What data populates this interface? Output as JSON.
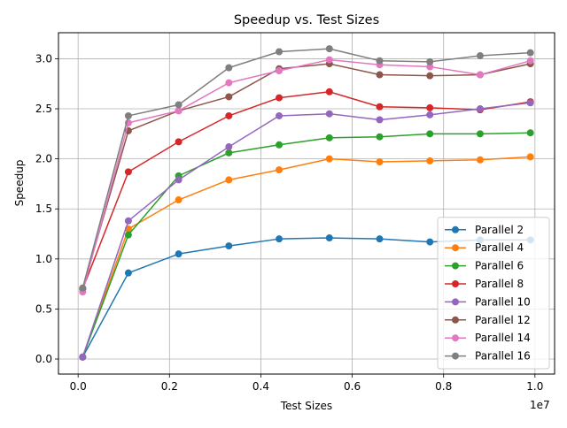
{
  "chart_data": {
    "type": "line",
    "title": "Speedup vs. Test Sizes",
    "xlabel": "Test Sizes",
    "ylabel": "Speedup",
    "x_offset_label": "1e7",
    "x": [
      100000,
      1100000,
      2200000,
      3300000,
      4400000,
      5500000,
      6600000,
      7700000,
      8800000,
      9900000
    ],
    "xlim": [
      -430000,
      10430000
    ],
    "ylim": [
      -0.15,
      3.26
    ],
    "x_ticks": [
      0,
      2000000,
      4000000,
      6000000,
      8000000,
      10000000
    ],
    "x_tick_labels": [
      "0.0",
      "0.2",
      "0.4",
      "0.6",
      "0.8",
      "1.0"
    ],
    "y_ticks": [
      0.0,
      0.5,
      1.0,
      1.5,
      2.0,
      2.5,
      3.0
    ],
    "y_tick_labels": [
      "0.0",
      "0.5",
      "1.0",
      "1.5",
      "2.0",
      "2.5",
      "3.0"
    ],
    "grid": true,
    "legend_position": "lower-right",
    "series": [
      {
        "name": "Parallel 2",
        "color": "#1f77b4",
        "values": [
          0.02,
          0.86,
          1.05,
          1.13,
          1.2,
          1.21,
          1.2,
          1.17,
          1.19,
          1.19
        ]
      },
      {
        "name": "Parallel 4",
        "color": "#ff7f0e",
        "values": [
          0.02,
          1.3,
          1.59,
          1.79,
          1.89,
          2.0,
          1.97,
          1.98,
          1.99,
          2.02
        ]
      },
      {
        "name": "Parallel 6",
        "color": "#2ca02c",
        "values": [
          0.02,
          1.24,
          1.83,
          2.06,
          2.14,
          2.21,
          2.22,
          2.25,
          2.25,
          2.26
        ]
      },
      {
        "name": "Parallel 8",
        "color": "#d62728",
        "values": [
          0.7,
          1.87,
          2.17,
          2.43,
          2.61,
          2.67,
          2.52,
          2.51,
          2.49,
          2.57
        ]
      },
      {
        "name": "Parallel 10",
        "color": "#9467bd",
        "values": [
          0.02,
          1.38,
          1.79,
          2.12,
          2.43,
          2.45,
          2.39,
          2.44,
          2.5,
          2.56
        ]
      },
      {
        "name": "Parallel 12",
        "color": "#8c564b",
        "values": [
          0.7,
          2.28,
          2.48,
          2.62,
          2.9,
          2.95,
          2.84,
          2.83,
          2.84,
          2.95
        ]
      },
      {
        "name": "Parallel 14",
        "color": "#e377c2",
        "values": [
          0.67,
          2.36,
          2.48,
          2.76,
          2.88,
          2.99,
          2.94,
          2.92,
          2.84,
          2.98
        ]
      },
      {
        "name": "Parallel 16",
        "color": "#7f7f7f",
        "values": [
          0.71,
          2.43,
          2.54,
          2.91,
          3.07,
          3.1,
          2.98,
          2.97,
          3.03,
          3.06
        ]
      }
    ]
  }
}
